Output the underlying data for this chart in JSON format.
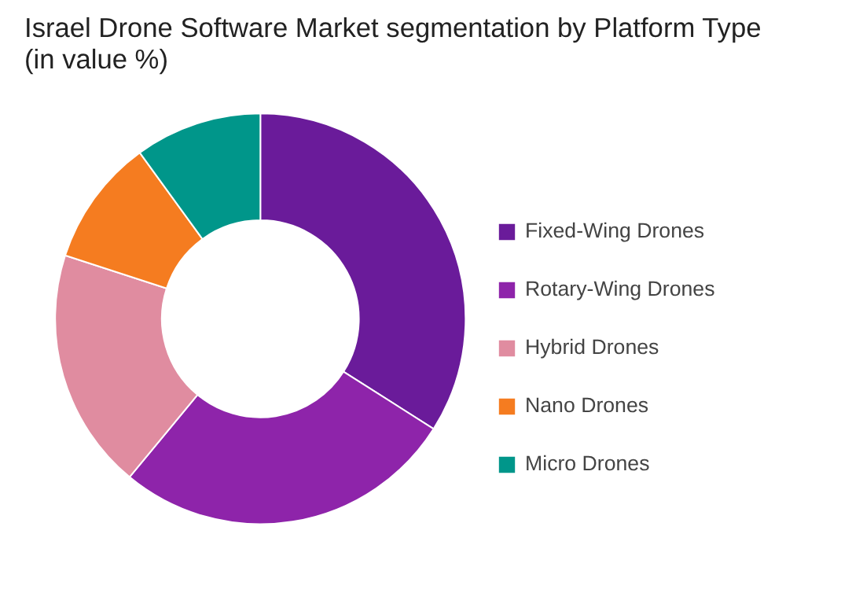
{
  "chart_data": {
    "type": "donut",
    "title": "Israel Drone Software Market segmentation by Platform Type (in value %)",
    "categories": [
      "Fixed-Wing Drones",
      "Rotary-Wing Drones",
      "Hybrid Drones",
      "Nano Drones",
      "Micro Drones"
    ],
    "values": [
      34,
      27,
      19,
      10,
      10
    ],
    "colors": [
      "#6a1b9a",
      "#8e24aa",
      "#e08ca0",
      "#f57c20",
      "#00968a"
    ],
    "legend": "right"
  }
}
